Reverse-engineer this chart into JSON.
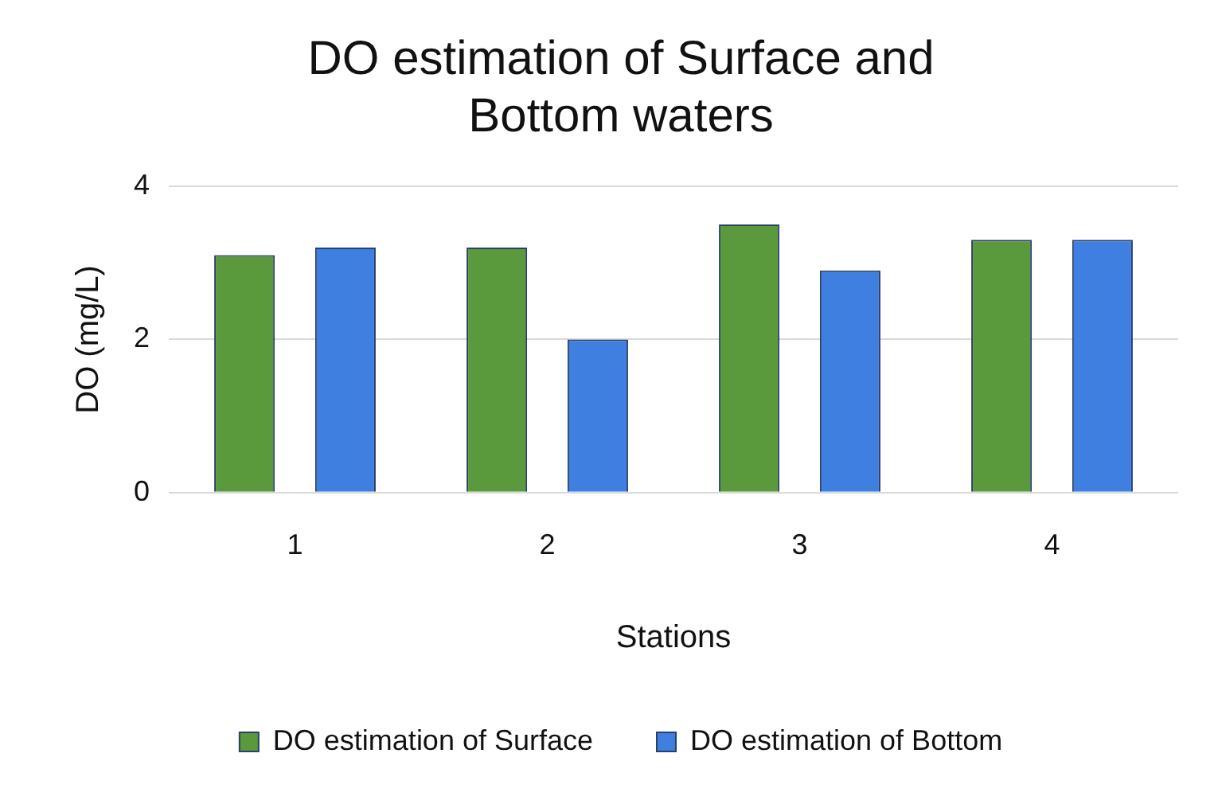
{
  "chart_data": {
    "type": "bar",
    "title": "DO estimation of Surface and Bottom waters",
    "xlabel": "Stations",
    "ylabel": "DO (mg/L)",
    "categories": [
      "1",
      "2",
      "3",
      "4"
    ],
    "series": [
      {
        "name": "DO estimation of Surface",
        "color": "#5a9a3c",
        "values": [
          3.1,
          3.2,
          3.5,
          3.3
        ]
      },
      {
        "name": "DO estimation of Bottom",
        "color": "#3f7fe0",
        "values": [
          3.2,
          2.0,
          2.9,
          3.3
        ]
      }
    ],
    "ylim": [
      0,
      4
    ],
    "yticks": [
      0,
      2,
      4
    ],
    "grid": "y",
    "legend": "bottom"
  }
}
